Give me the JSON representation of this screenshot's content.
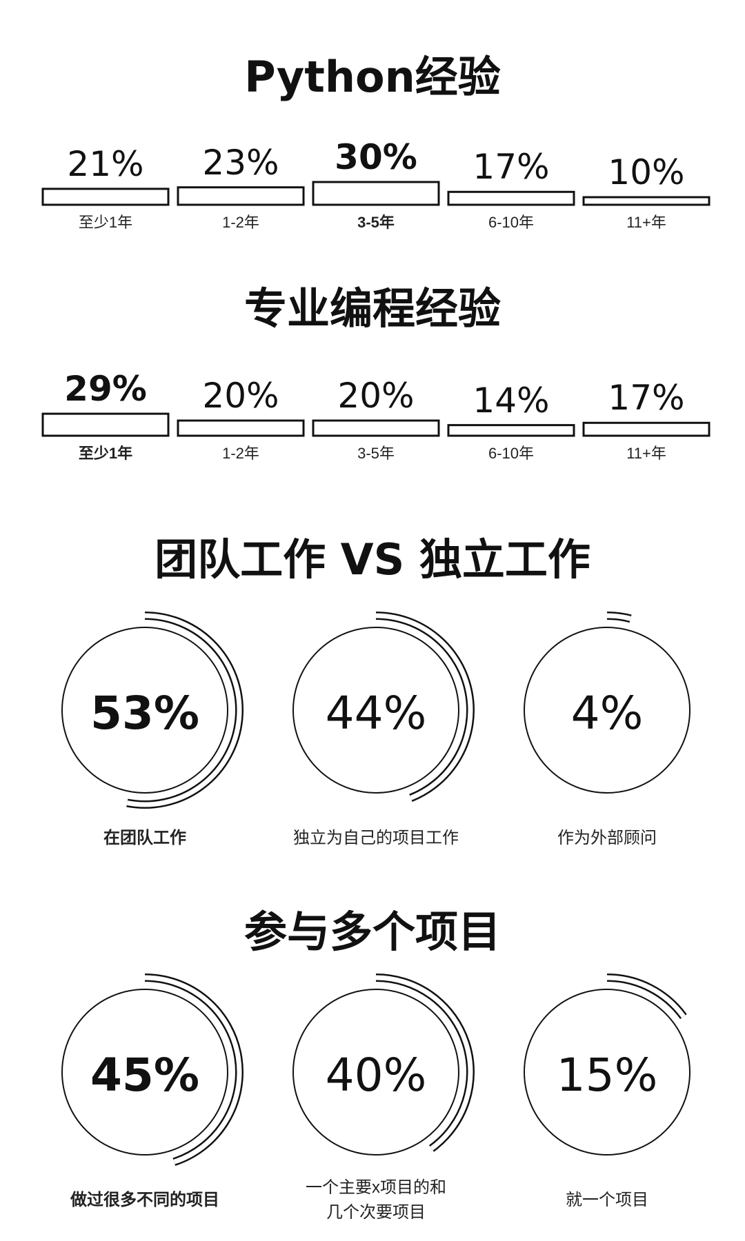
{
  "sections": {
    "python_experience": {
      "title": "Python经验"
    },
    "professional_experience": {
      "title": "专业编程经验"
    },
    "team_vs_solo": {
      "title": "团队工作 VS 独立工作"
    },
    "multiple_projects": {
      "title": "参与多个项目"
    }
  },
  "chart_data": [
    {
      "type": "bar",
      "title": "Python经验",
      "categories": [
        "至少1年",
        "1-2年",
        "3-5年",
        "6-10年",
        "11+年"
      ],
      "values": [
        21,
        23,
        30,
        17,
        10
      ],
      "labels": [
        "21%",
        "23%",
        "30%",
        "17%",
        "10%"
      ],
      "highlight_index": 2,
      "ylim": [
        0,
        100
      ]
    },
    {
      "type": "bar",
      "title": "专业编程经验",
      "categories": [
        "至少1年",
        "1-2年",
        "3-5年",
        "6-10年",
        "11+年"
      ],
      "values": [
        29,
        20,
        20,
        14,
        17
      ],
      "labels": [
        "29%",
        "20%",
        "20%",
        "14%",
        "17%"
      ],
      "highlight_index": 0,
      "ylim": [
        0,
        100
      ]
    },
    {
      "type": "pie",
      "title": "团队工作 VS 独立工作",
      "categories": [
        "在团队工作",
        "独立为自己的项目工作",
        "作为外部顾问"
      ],
      "values": [
        53,
        44,
        4
      ],
      "labels": [
        "53%",
        "44%",
        "4%"
      ],
      "highlight_index": 0
    },
    {
      "type": "pie",
      "title": "参与多个项目",
      "categories": [
        "做过很多不同的项目",
        "一个主要x项目的和 几个次要项目",
        "就一个项目"
      ],
      "values": [
        45,
        40,
        15
      ],
      "labels": [
        "45%",
        "40%",
        "15%"
      ],
      "highlight_index": 0
    }
  ]
}
